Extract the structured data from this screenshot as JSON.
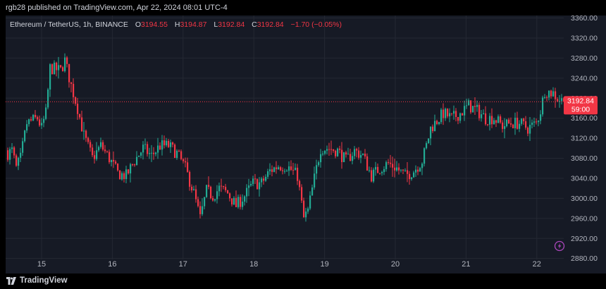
{
  "publisher_line": "rgb28 published on TradingView.com, Apr 22, 2024 08:01 UTC-4",
  "legend": {
    "symbol": "Ethereum / TetherUS, 1h, BINANCE",
    "open_label": "O",
    "open": "3194.55",
    "high_label": "H",
    "high": "3194.87",
    "low_label": "L",
    "low": "3192.84",
    "close_label": "C",
    "close": "3192.84",
    "change": "−1.70 (−0.05%)"
  },
  "price_tag": {
    "price": "3192.84",
    "countdown": "59:00"
  },
  "footer": {
    "brand": "TradingView"
  },
  "icons": {
    "logo": "tradingview-logo-icon",
    "lightning": "lightning-bolt-icon"
  },
  "colors": {
    "up": "#22ab94",
    "down": "#f23645",
    "background": "#161a25",
    "grid": "#242833"
  },
  "chart_data": {
    "type": "candlestick",
    "title": "Ethereum / TetherUS, 1h, BINANCE",
    "x_tick_labels": [
      "15",
      "16",
      "17",
      "18",
      "19",
      "20",
      "21",
      "22"
    ],
    "y_tick_labels": [
      "2880.00",
      "2920.00",
      "2960.00",
      "3000.00",
      "3040.00",
      "3080.00",
      "3120.00",
      "3160.00",
      "3200.00",
      "3240.00",
      "3280.00",
      "3320.00",
      "3360.00"
    ],
    "ylim": [
      2850,
      3365
    ],
    "grid": true,
    "last_price": 3192.84,
    "anchors": [
      [
        0,
        3090
      ],
      [
        2,
        3095
      ],
      [
        4,
        3060
      ],
      [
        6,
        3080
      ],
      [
        9,
        3150
      ],
      [
        14,
        3160
      ],
      [
        16,
        3140
      ],
      [
        18,
        3170
      ],
      [
        20,
        3260
      ],
      [
        25,
        3255
      ],
      [
        27,
        3275
      ],
      [
        30,
        3225
      ],
      [
        33,
        3180
      ],
      [
        36,
        3125
      ],
      [
        40,
        3080
      ],
      [
        44,
        3105
      ],
      [
        48,
        3080
      ],
      [
        52,
        3050
      ],
      [
        56,
        3045
      ],
      [
        60,
        3075
      ],
      [
        64,
        3100
      ],
      [
        68,
        3085
      ],
      [
        72,
        3105
      ],
      [
        76,
        3105
      ],
      [
        80,
        3090
      ],
      [
        84,
        3060
      ],
      [
        88,
        3010
      ],
      [
        91,
        2960
      ],
      [
        94,
        3015
      ],
      [
        97,
        3005
      ],
      [
        100,
        3020
      ],
      [
        104,
        3010
      ],
      [
        108,
        2985
      ],
      [
        112,
        3005
      ],
      [
        116,
        3030
      ],
      [
        120,
        3030
      ],
      [
        124,
        3055
      ],
      [
        128,
        3065
      ],
      [
        132,
        3065
      ],
      [
        137,
        3045
      ],
      [
        140,
        2960
      ],
      [
        142,
        2975
      ],
      [
        145,
        3040
      ],
      [
        148,
        3100
      ],
      [
        152,
        3100
      ],
      [
        156,
        3095
      ],
      [
        160,
        3075
      ],
      [
        164,
        3095
      ],
      [
        168,
        3085
      ],
      [
        172,
        3045
      ],
      [
        176,
        3060
      ],
      [
        180,
        3070
      ],
      [
        184,
        3060
      ],
      [
        188,
        3045
      ],
      [
        192,
        3055
      ],
      [
        196,
        3075
      ],
      [
        198,
        3105
      ],
      [
        200,
        3140
      ],
      [
        204,
        3160
      ],
      [
        206,
        3170
      ],
      [
        210,
        3160
      ],
      [
        214,
        3170
      ],
      [
        218,
        3185
      ],
      [
        222,
        3175
      ],
      [
        226,
        3160
      ],
      [
        230,
        3160
      ],
      [
        234,
        3145
      ],
      [
        238,
        3150
      ],
      [
        242,
        3150
      ],
      [
        246,
        3140
      ],
      [
        250,
        3150
      ],
      [
        252,
        3175
      ],
      [
        254,
        3215
      ],
      [
        258,
        3210
      ],
      [
        260,
        3200
      ],
      [
        263,
        3193
      ]
    ]
  }
}
